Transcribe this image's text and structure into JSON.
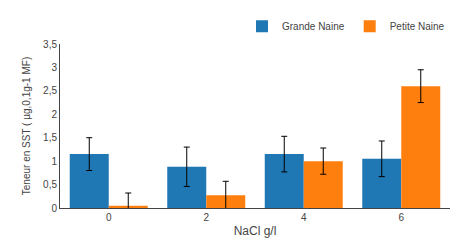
{
  "chart_data": {
    "type": "bar",
    "categories": [
      "0",
      "2",
      "4",
      "6"
    ],
    "series": [
      {
        "name": "Grande Naine",
        "values": [
          1.15,
          0.88,
          1.15,
          1.05
        ],
        "errors": [
          0.35,
          0.42,
          0.38,
          0.38
        ]
      },
      {
        "name": "Petite Naine",
        "values": [
          0.05,
          0.27,
          1.0,
          2.6
        ],
        "errors": [
          0.27,
          0.3,
          0.28,
          0.35
        ]
      }
    ],
    "xlabel": "NaCl g/l",
    "ylabel": "Teneur en SST ( µg,0,1g-1 MF)",
    "ylim": [
      0,
      3.5
    ],
    "yticks": [
      0,
      {
        "value": 0.5,
        "label": "0,5"
      },
      1,
      {
        "value": 1.5,
        "label": "1,5"
      },
      2,
      {
        "value": 2.5,
        "label": "2,5"
      },
      3,
      {
        "value": 3.5,
        "label": "3,5"
      }
    ],
    "grid": false,
    "legend": "upper right"
  }
}
